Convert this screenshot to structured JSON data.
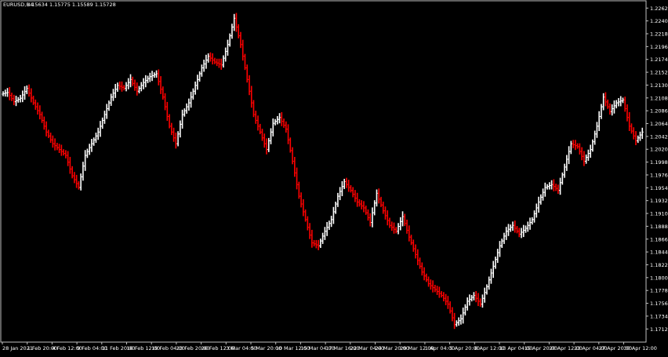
{
  "window": {
    "symbol_title": "EURUSD,H4",
    "ohlc_readout": "1.15634 1.15775 1.15589 1.15728"
  },
  "colors": {
    "background": "#000000",
    "frame": "#c0c0c0",
    "bull": "#ffffff",
    "bear": "#ff0000",
    "text": "#ffffff"
  },
  "chart_data": {
    "type": "line",
    "title": "EURUSD,H4",
    "subtitle": "1.15634 1.15775 1.15589 1.15728",
    "xlabel": "",
    "ylabel": "",
    "grid": false,
    "ylim": [
      1.169,
      1.2275
    ],
    "y_ticks": [
      "1.22625",
      "1.22405",
      "1.22185",
      "1.21965",
      "1.21745",
      "1.21525",
      "1.21305",
      "1.21085",
      "1.20865",
      "1.20645",
      "1.20425",
      "1.20205",
      "1.19985",
      "1.19765",
      "1.19545",
      "1.19325",
      "1.19105",
      "1.18885",
      "1.18665",
      "1.18445",
      "1.18225",
      "1.18005",
      "1.17785",
      "1.17565",
      "1.17345",
      "1.17125"
    ],
    "x_ticks": [
      "28 Jan 2021",
      "1 Feb 20:00",
      "4 Feb 12:00",
      "9 Feb 04:00",
      "11 Feb 20:00",
      "16 Feb 12:00",
      "19 Feb 04:00",
      "23 Feb 20:00",
      "26 Feb 12:00",
      "3 Mar 04:00",
      "5 Mar 20:00",
      "10 Mar 12:00",
      "15 Mar 04:00",
      "17 Mar 16:00",
      "22 Mar 04:00",
      "24 Mar 20:00",
      "29 Mar 12:00",
      "1 Apr 04:00",
      "5 Apr 20:00",
      "8 Apr 12:00",
      "13 Apr 04:00",
      "15 Apr 20:00",
      "20 Apr 12:00",
      "23 Apr 04:00",
      "27 Apr 20:00",
      "30 Apr 12:00"
    ],
    "series": [
      {
        "values": [
          1.2115,
          1.2118,
          1.2102,
          1.2108,
          1.2125,
          1.21,
          1.208,
          1.205,
          1.203,
          1.202,
          1.201,
          1.1975,
          1.1955,
          1.201,
          1.203,
          1.205,
          1.208,
          1.211,
          1.213,
          1.2125,
          1.214,
          1.212,
          1.2135,
          1.2145,
          1.215,
          1.211,
          1.206,
          1.203,
          1.208,
          1.21,
          1.213,
          1.216,
          1.218,
          1.217,
          1.2165,
          1.22,
          1.2245,
          1.22,
          1.214,
          1.208,
          1.205,
          1.202,
          1.2065,
          1.2075,
          1.2055,
          1.2,
          1.194,
          1.19,
          1.186,
          1.1855,
          1.188,
          1.19,
          1.194,
          1.1965,
          1.195,
          1.193,
          1.192,
          1.1895,
          1.1945,
          1.1915,
          1.189,
          1.188,
          1.1905,
          1.187,
          1.184,
          1.181,
          1.179,
          1.178,
          1.177,
          1.1755,
          1.172,
          1.173,
          1.176,
          1.177,
          1.1755,
          1.1785,
          1.182,
          1.1855,
          1.188,
          1.189,
          1.1875,
          1.1885,
          1.19,
          1.193,
          1.1955,
          1.196,
          1.195,
          1.199,
          1.203,
          1.2025,
          1.2,
          1.202,
          1.206,
          1.211,
          1.2085,
          1.21,
          1.2105,
          1.206,
          1.2035,
          1.205
        ],
        "up_color": "#ffffff",
        "down_color": "#ff0000"
      }
    ]
  }
}
